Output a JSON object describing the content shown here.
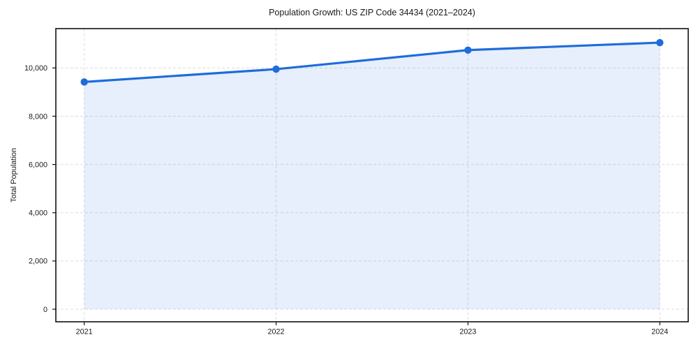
{
  "figure": {
    "background": "#ffffff"
  },
  "chart_data": {
    "type": "area",
    "title": "Population Growth: US ZIP Code 34434 (2021–2024)",
    "xlabel": "",
    "ylabel": "Total Population",
    "x": [
      2021,
      2022,
      2023,
      2024
    ],
    "x_tick_labels": [
      "2021",
      "2022",
      "2023",
      "2024"
    ],
    "series": [
      {
        "name": "Total Population",
        "values": [
          9420,
          9950,
          10740,
          11050
        ]
      }
    ],
    "y_ticks": [
      0,
      2000,
      4000,
      6000,
      8000,
      10000
    ],
    "y_tick_labels": [
      "0",
      "2,000",
      "4,000",
      "6,000",
      "8,000",
      "10,000"
    ],
    "ylim": [
      -520,
      11630
    ],
    "grid": true,
    "grid_style": "dashed",
    "legend": "none",
    "line_color": "#1f6cdb",
    "fill_color": "#1f6cdb",
    "fill_opacity": 0.11,
    "marker": "circle",
    "marker_radius": 5.2,
    "line_width": 3.2,
    "grid_color": "#dcdcdc",
    "axis_color": "#111111",
    "text_color": "#1a1a1a"
  }
}
